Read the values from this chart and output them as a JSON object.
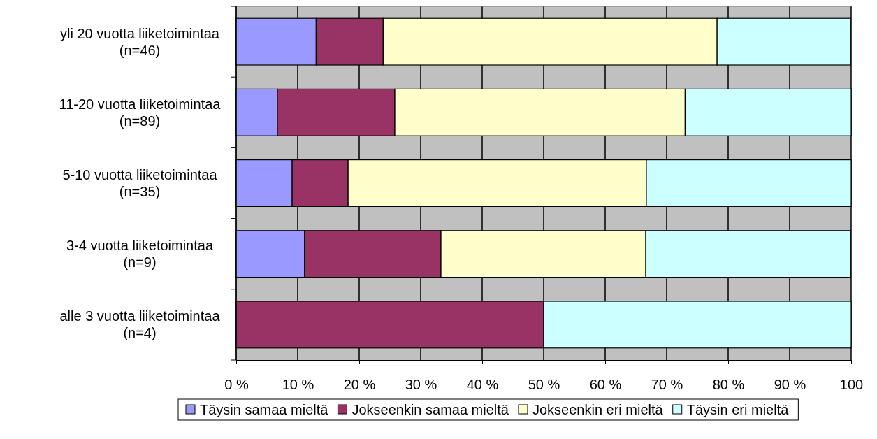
{
  "chart_data": {
    "type": "bar",
    "orientation": "horizontal",
    "stacked": true,
    "categories": [
      "yli 20 vuotta liiketoimintaa (n=46)",
      "11-20 vuotta liiketoimintaa (n=89)",
      "5-10 vuotta liiketoimintaa (n=35)",
      "3-4 vuotta liiketoimintaa (n=9)",
      "alle 3 vuotta liiketoimintaa (n=4)"
    ],
    "series": [
      {
        "name": "Täysin samaa mieltä",
        "color": "#9999ff",
        "values": [
          13.0,
          6.7,
          9.1,
          11.1,
          0
        ]
      },
      {
        "name": "Jokseenkin samaa mieltä",
        "color": "#993366",
        "values": [
          10.9,
          19.1,
          9.1,
          22.2,
          50
        ]
      },
      {
        "name": "Jokseenkin eri mieltä",
        "color": "#ffffcc",
        "values": [
          54.3,
          47.2,
          48.5,
          33.3,
          0
        ]
      },
      {
        "name": "Täysin eri mieltä",
        "color": "#ccffff",
        "values": [
          21.7,
          27.0,
          33.3,
          33.3,
          50
        ]
      }
    ],
    "xlim": [
      0,
      100
    ],
    "xticks": [
      {
        "value": 0,
        "label": "0 %"
      },
      {
        "value": 10,
        "label": "10 %"
      },
      {
        "value": 20,
        "label": "20 %"
      },
      {
        "value": 30,
        "label": "30 %"
      },
      {
        "value": 40,
        "label": "40 %"
      },
      {
        "value": 50,
        "label": "50 %"
      },
      {
        "value": 60,
        "label": "60 %"
      },
      {
        "value": 70,
        "label": "70 %"
      },
      {
        "value": 80,
        "label": "80 %"
      },
      {
        "value": 90,
        "label": "90 %"
      },
      {
        "value": 100,
        "label": "100"
      }
    ],
    "grid": "x",
    "legend": "bottom"
  }
}
